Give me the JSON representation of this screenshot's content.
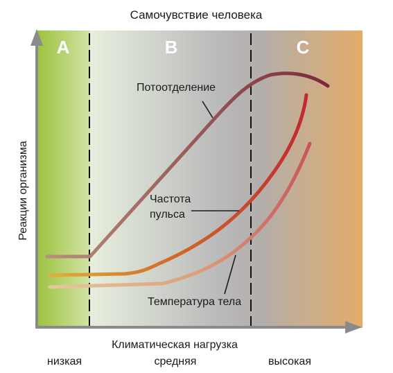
{
  "diagram": {
    "title": "Самочувствие человека",
    "y_axis_label": "Реакции организма",
    "x_axis_label": "Климатическая нагрузка",
    "x_levels": [
      "низкая",
      "средняя",
      "высокая"
    ],
    "zones": [
      "A",
      "B",
      "C"
    ],
    "curves": [
      {
        "label": "Потоотделение",
        "color": "#9a5a58"
      },
      {
        "label_line1": "Частота",
        "label_line2": "пульса",
        "color": "#c0451f"
      },
      {
        "label": "Температура тела",
        "color": "#d9a07a"
      }
    ]
  }
}
